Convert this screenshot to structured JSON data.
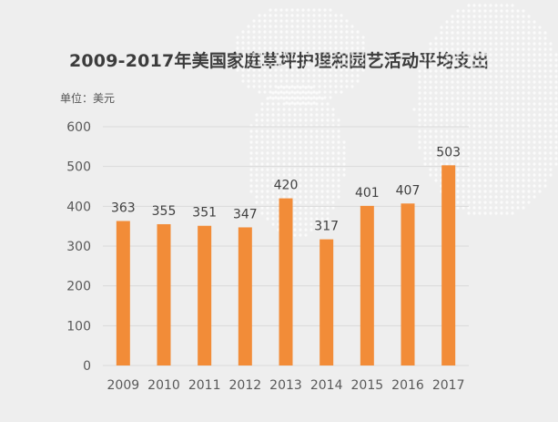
{
  "title": "2009-2017年美国家庭草坪护理和园艺活动平均支出",
  "unit_label": "单位：美元",
  "colors": {
    "bar": "#f28c38",
    "grid": "#d9d9d9",
    "axis_text": "#595959",
    "label_text": "#404040",
    "background": "#eeeeee"
  },
  "chart_data": {
    "type": "bar",
    "title": "2009-2017年美国家庭草坪护理和园艺活动平均支出",
    "xlabel": "",
    "ylabel": "单位：美元",
    "categories": [
      "2009",
      "2010",
      "2011",
      "2012",
      "2013",
      "2014",
      "2015",
      "2016",
      "2017"
    ],
    "values": [
      363,
      355,
      351,
      347,
      420,
      317,
      401,
      407,
      503
    ],
    "ylim": [
      0,
      600
    ],
    "yticks": [
      0,
      100,
      200,
      300,
      400,
      500,
      600
    ],
    "grid": true,
    "legend": "none"
  }
}
